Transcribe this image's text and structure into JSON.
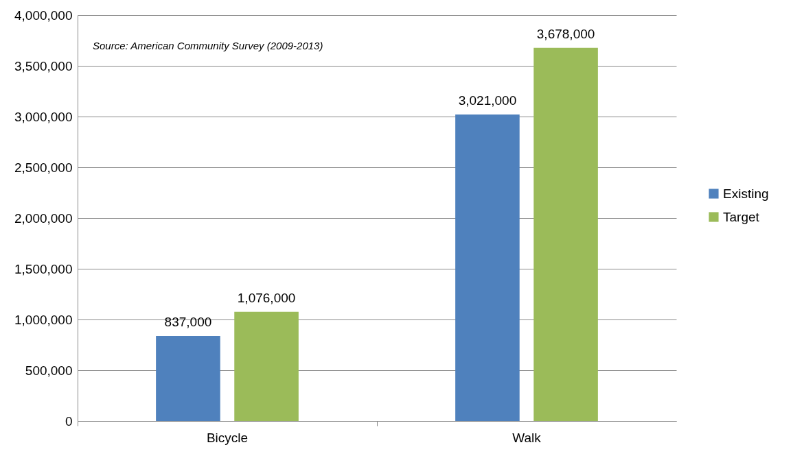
{
  "chart_data": {
    "type": "bar",
    "categories": [
      "Bicycle",
      "Walk"
    ],
    "series": [
      {
        "name": "Existing",
        "color": "#4f81bd",
        "values": [
          837000,
          3021000
        ],
        "value_labels": [
          "837,000",
          "3,021,000"
        ]
      },
      {
        "name": "Target",
        "color": "#9bbb59",
        "values": [
          1076000,
          3678000
        ],
        "value_labels": [
          "1,076,000",
          "3,678,000"
        ]
      }
    ],
    "ylim": [
      0,
      4000000
    ],
    "yticks": [
      0,
      {
        "value": 500000,
        "label": "500,000"
      },
      {
        "value": 1000000,
        "label": "1,000,000"
      },
      {
        "value": 1500000,
        "label": "1,500,000"
      },
      {
        "value": 2000000,
        "label": "2,000,000"
      },
      {
        "value": 2500000,
        "label": "2,500,000"
      },
      {
        "value": 3000000,
        "label": "3,000,000"
      },
      {
        "value": 3500000,
        "label": "3,500,000"
      },
      {
        "value": 4000000,
        "label": "4,000,000"
      }
    ],
    "grid": "y",
    "legend": "right",
    "annotations": [
      "Source: American Community Survey (2009-2013)"
    ]
  }
}
